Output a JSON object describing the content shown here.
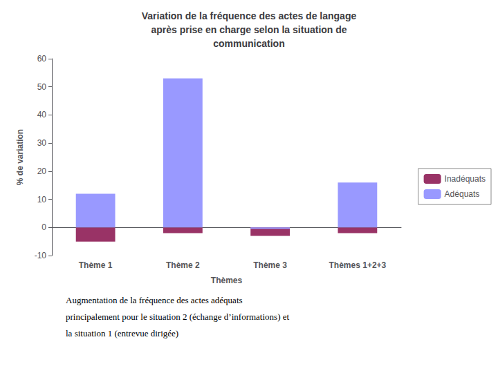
{
  "chart_data": {
    "type": "bar",
    "title": "Variation de la fréquence des actes de langage\naprès prise en charge selon la situation de\ncommunication",
    "xlabel": "Thèmes",
    "ylabel": "% de variation",
    "categories": [
      "Thème 1",
      "Thème 2",
      "Thème 3",
      "Thèmes 1+2+3"
    ],
    "series": [
      {
        "name": "Inadéquats",
        "color": "#993366",
        "values": [
          -5,
          -2,
          -3,
          -2
        ]
      },
      {
        "name": "Adéquats",
        "color": "#9999ff",
        "values": [
          12,
          53,
          -0.5,
          16
        ]
      }
    ],
    "ylim": [
      -10,
      60
    ],
    "yticks": [
      -10,
      0,
      10,
      20,
      30,
      40,
      50,
      60
    ],
    "grid": false,
    "legend": "right",
    "annotations": [
      "Augmentation de la fréquence des actes adéquats",
      "principalement pour le situation 2 (échange d’informations) et",
      "la situation 1 (entrevue dirigée)"
    ]
  }
}
